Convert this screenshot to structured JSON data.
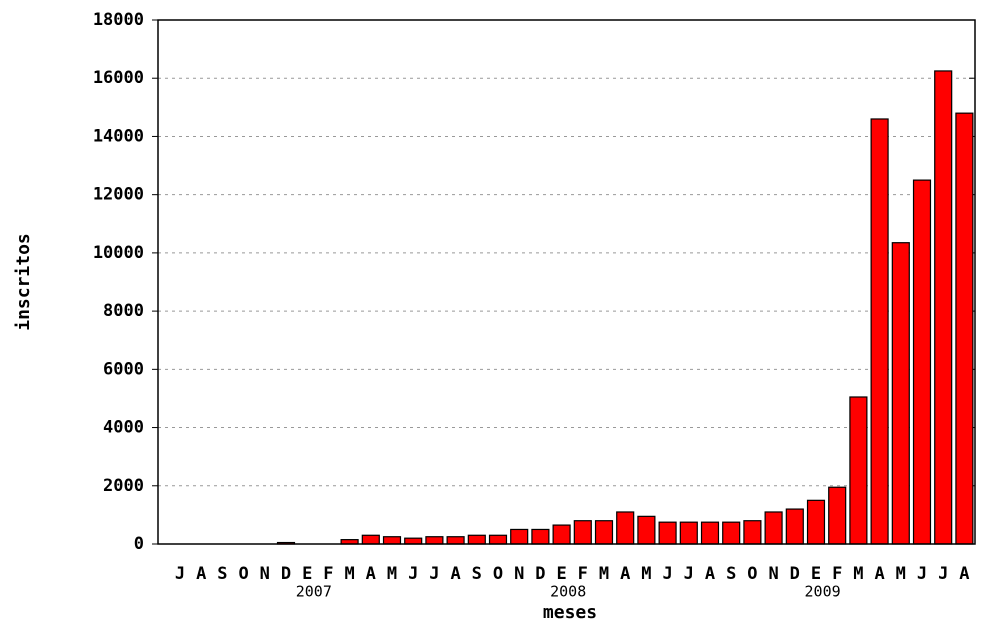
{
  "chart_data": {
    "type": "bar",
    "x_label": "meses",
    "y_label": "inscritos",
    "categories": [
      "J",
      "A",
      "S",
      "O",
      "N",
      "D",
      "E",
      "F",
      "M",
      "A",
      "M",
      "J",
      "J",
      "A",
      "S",
      "O",
      "N",
      "D",
      "E",
      "F",
      "M",
      "A",
      "M",
      "J",
      "J",
      "A",
      "S",
      "O",
      "N",
      "D",
      "E",
      "F",
      "M",
      "A",
      "M",
      "J",
      "J",
      "A"
    ],
    "values": [
      0,
      0,
      0,
      0,
      0,
      50,
      0,
      0,
      150,
      300,
      250,
      200,
      250,
      250,
      300,
      300,
      500,
      500,
      650,
      800,
      800,
      1100,
      950,
      750,
      750,
      750,
      750,
      800,
      1100,
      1200,
      1500,
      1950,
      5050,
      14600,
      10350,
      12500,
      16250,
      14800
    ],
    "year_labels": [
      "2007",
      "2008",
      "2009"
    ],
    "color": "#ff0000",
    "ylim": [
      0,
      18000
    ],
    "yticks": [
      0,
      2000,
      4000,
      6000,
      8000,
      10000,
      12000,
      14000,
      16000,
      18000
    ],
    "grid": true
  }
}
